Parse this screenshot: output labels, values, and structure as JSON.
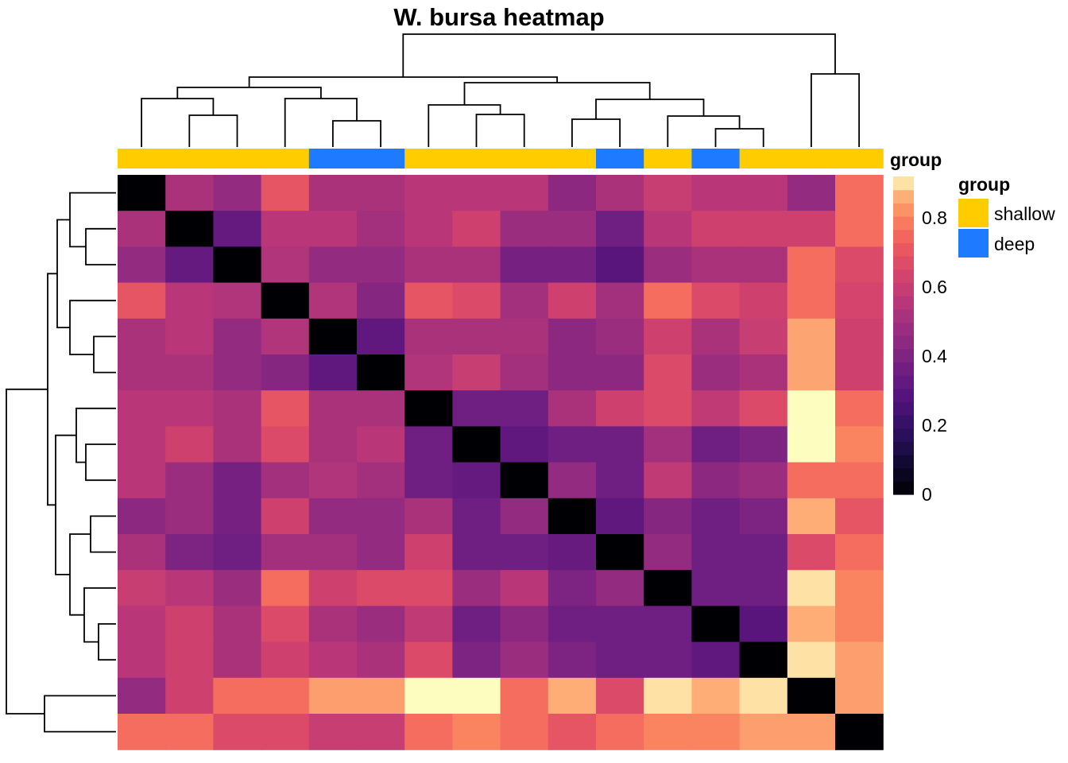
{
  "chart_data": {
    "type": "heatmap",
    "title": "W. bursa heatmap",
    "n": 16,
    "row_order": [
      0,
      1,
      2,
      3,
      4,
      5,
      6,
      7,
      8,
      9,
      10,
      11,
      12,
      13,
      14,
      15
    ],
    "column_groups": [
      "shallow",
      "shallow",
      "shallow",
      "shallow",
      "deep",
      "deep",
      "shallow",
      "shallow",
      "shallow",
      "shallow",
      "deep",
      "shallow",
      "deep",
      "shallow",
      "shallow",
      "shallow"
    ],
    "group_annotation": {
      "label": "group",
      "legend_title": "group",
      "levels": [
        {
          "name": "shallow",
          "color": "#FFCC00"
        },
        {
          "name": "deep",
          "color": "#1E7BFF"
        }
      ]
    },
    "colorbar": {
      "label": "",
      "ticks": [
        0,
        0.2,
        0.4,
        0.6,
        0.8
      ],
      "tick_labels": [
        "0",
        "0.2",
        "0.4",
        "0.6",
        "0.8"
      ],
      "range": [
        0,
        0.92
      ],
      "stops": [
        [
          0.0,
          "#000004"
        ],
        [
          0.1,
          "#110A30"
        ],
        [
          0.2,
          "#2D1160"
        ],
        [
          0.3,
          "#51127C"
        ],
        [
          0.4,
          "#721F81"
        ],
        [
          0.5,
          "#932B80"
        ],
        [
          0.6,
          "#B63679"
        ],
        [
          0.7,
          "#D6456C"
        ],
        [
          0.8,
          "#F1605D"
        ],
        [
          0.88,
          "#FB8861"
        ],
        [
          0.94,
          "#FEB078"
        ],
        [
          1.0,
          "#FCFDBF"
        ]
      ]
    },
    "values": [
      [
        0,
        0.52,
        0.46,
        0.7,
        0.52,
        0.52,
        0.56,
        0.56,
        0.56,
        0.44,
        0.52,
        0.6,
        0.56,
        0.56,
        0.46,
        0.76
      ],
      [
        0.52,
        0,
        0.33,
        0.56,
        0.56,
        0.5,
        0.56,
        0.62,
        0.48,
        0.48,
        0.36,
        0.56,
        0.62,
        0.62,
        0.62,
        0.76
      ],
      [
        0.46,
        0.33,
        0,
        0.54,
        0.46,
        0.46,
        0.52,
        0.52,
        0.38,
        0.38,
        0.3,
        0.48,
        0.52,
        0.52,
        0.76,
        0.66
      ],
      [
        0.7,
        0.56,
        0.54,
        0,
        0.54,
        0.42,
        0.7,
        0.66,
        0.5,
        0.62,
        0.5,
        0.76,
        0.66,
        0.62,
        0.76,
        0.64
      ],
      [
        0.52,
        0.56,
        0.46,
        0.54,
        0,
        0.32,
        0.52,
        0.52,
        0.52,
        0.44,
        0.48,
        0.62,
        0.52,
        0.6,
        0.85,
        0.62
      ],
      [
        0.52,
        0.52,
        0.46,
        0.42,
        0.32,
        0,
        0.54,
        0.6,
        0.5,
        0.44,
        0.44,
        0.66,
        0.48,
        0.52,
        0.85,
        0.62
      ],
      [
        0.56,
        0.56,
        0.52,
        0.7,
        0.52,
        0.52,
        0,
        0.36,
        0.36,
        0.52,
        0.62,
        0.66,
        0.58,
        0.66,
        0.92,
        0.76
      ],
      [
        0.56,
        0.62,
        0.52,
        0.66,
        0.52,
        0.56,
        0.36,
        0,
        0.32,
        0.36,
        0.36,
        0.5,
        0.36,
        0.4,
        0.92,
        0.8
      ],
      [
        0.56,
        0.48,
        0.38,
        0.5,
        0.54,
        0.5,
        0.36,
        0.33,
        0,
        0.46,
        0.36,
        0.58,
        0.44,
        0.48,
        0.76,
        0.76
      ],
      [
        0.44,
        0.48,
        0.38,
        0.62,
        0.46,
        0.46,
        0.52,
        0.36,
        0.46,
        0,
        0.32,
        0.42,
        0.36,
        0.4,
        0.86,
        0.7
      ],
      [
        0.52,
        0.4,
        0.36,
        0.5,
        0.5,
        0.46,
        0.62,
        0.36,
        0.36,
        0.34,
        0,
        0.46,
        0.36,
        0.36,
        0.66,
        0.76
      ],
      [
        0.6,
        0.56,
        0.48,
        0.76,
        0.62,
        0.66,
        0.66,
        0.48,
        0.56,
        0.4,
        0.46,
        0,
        0.36,
        0.36,
        0.9,
        0.8
      ],
      [
        0.56,
        0.62,
        0.52,
        0.66,
        0.52,
        0.48,
        0.58,
        0.36,
        0.44,
        0.36,
        0.36,
        0.36,
        0,
        0.3,
        0.86,
        0.8
      ],
      [
        0.56,
        0.62,
        0.52,
        0.62,
        0.56,
        0.52,
        0.66,
        0.4,
        0.48,
        0.4,
        0.36,
        0.36,
        0.32,
        0,
        0.9,
        0.84
      ],
      [
        0.46,
        0.62,
        0.76,
        0.76,
        0.84,
        0.84,
        0.92,
        0.92,
        0.76,
        0.86,
        0.66,
        0.9,
        0.86,
        0.9,
        0,
        0.84
      ],
      [
        0.76,
        0.76,
        0.66,
        0.66,
        0.6,
        0.6,
        0.76,
        0.8,
        0.76,
        0.7,
        0.76,
        0.8,
        0.8,
        0.84,
        0.84,
        0
      ]
    ]
  }
}
